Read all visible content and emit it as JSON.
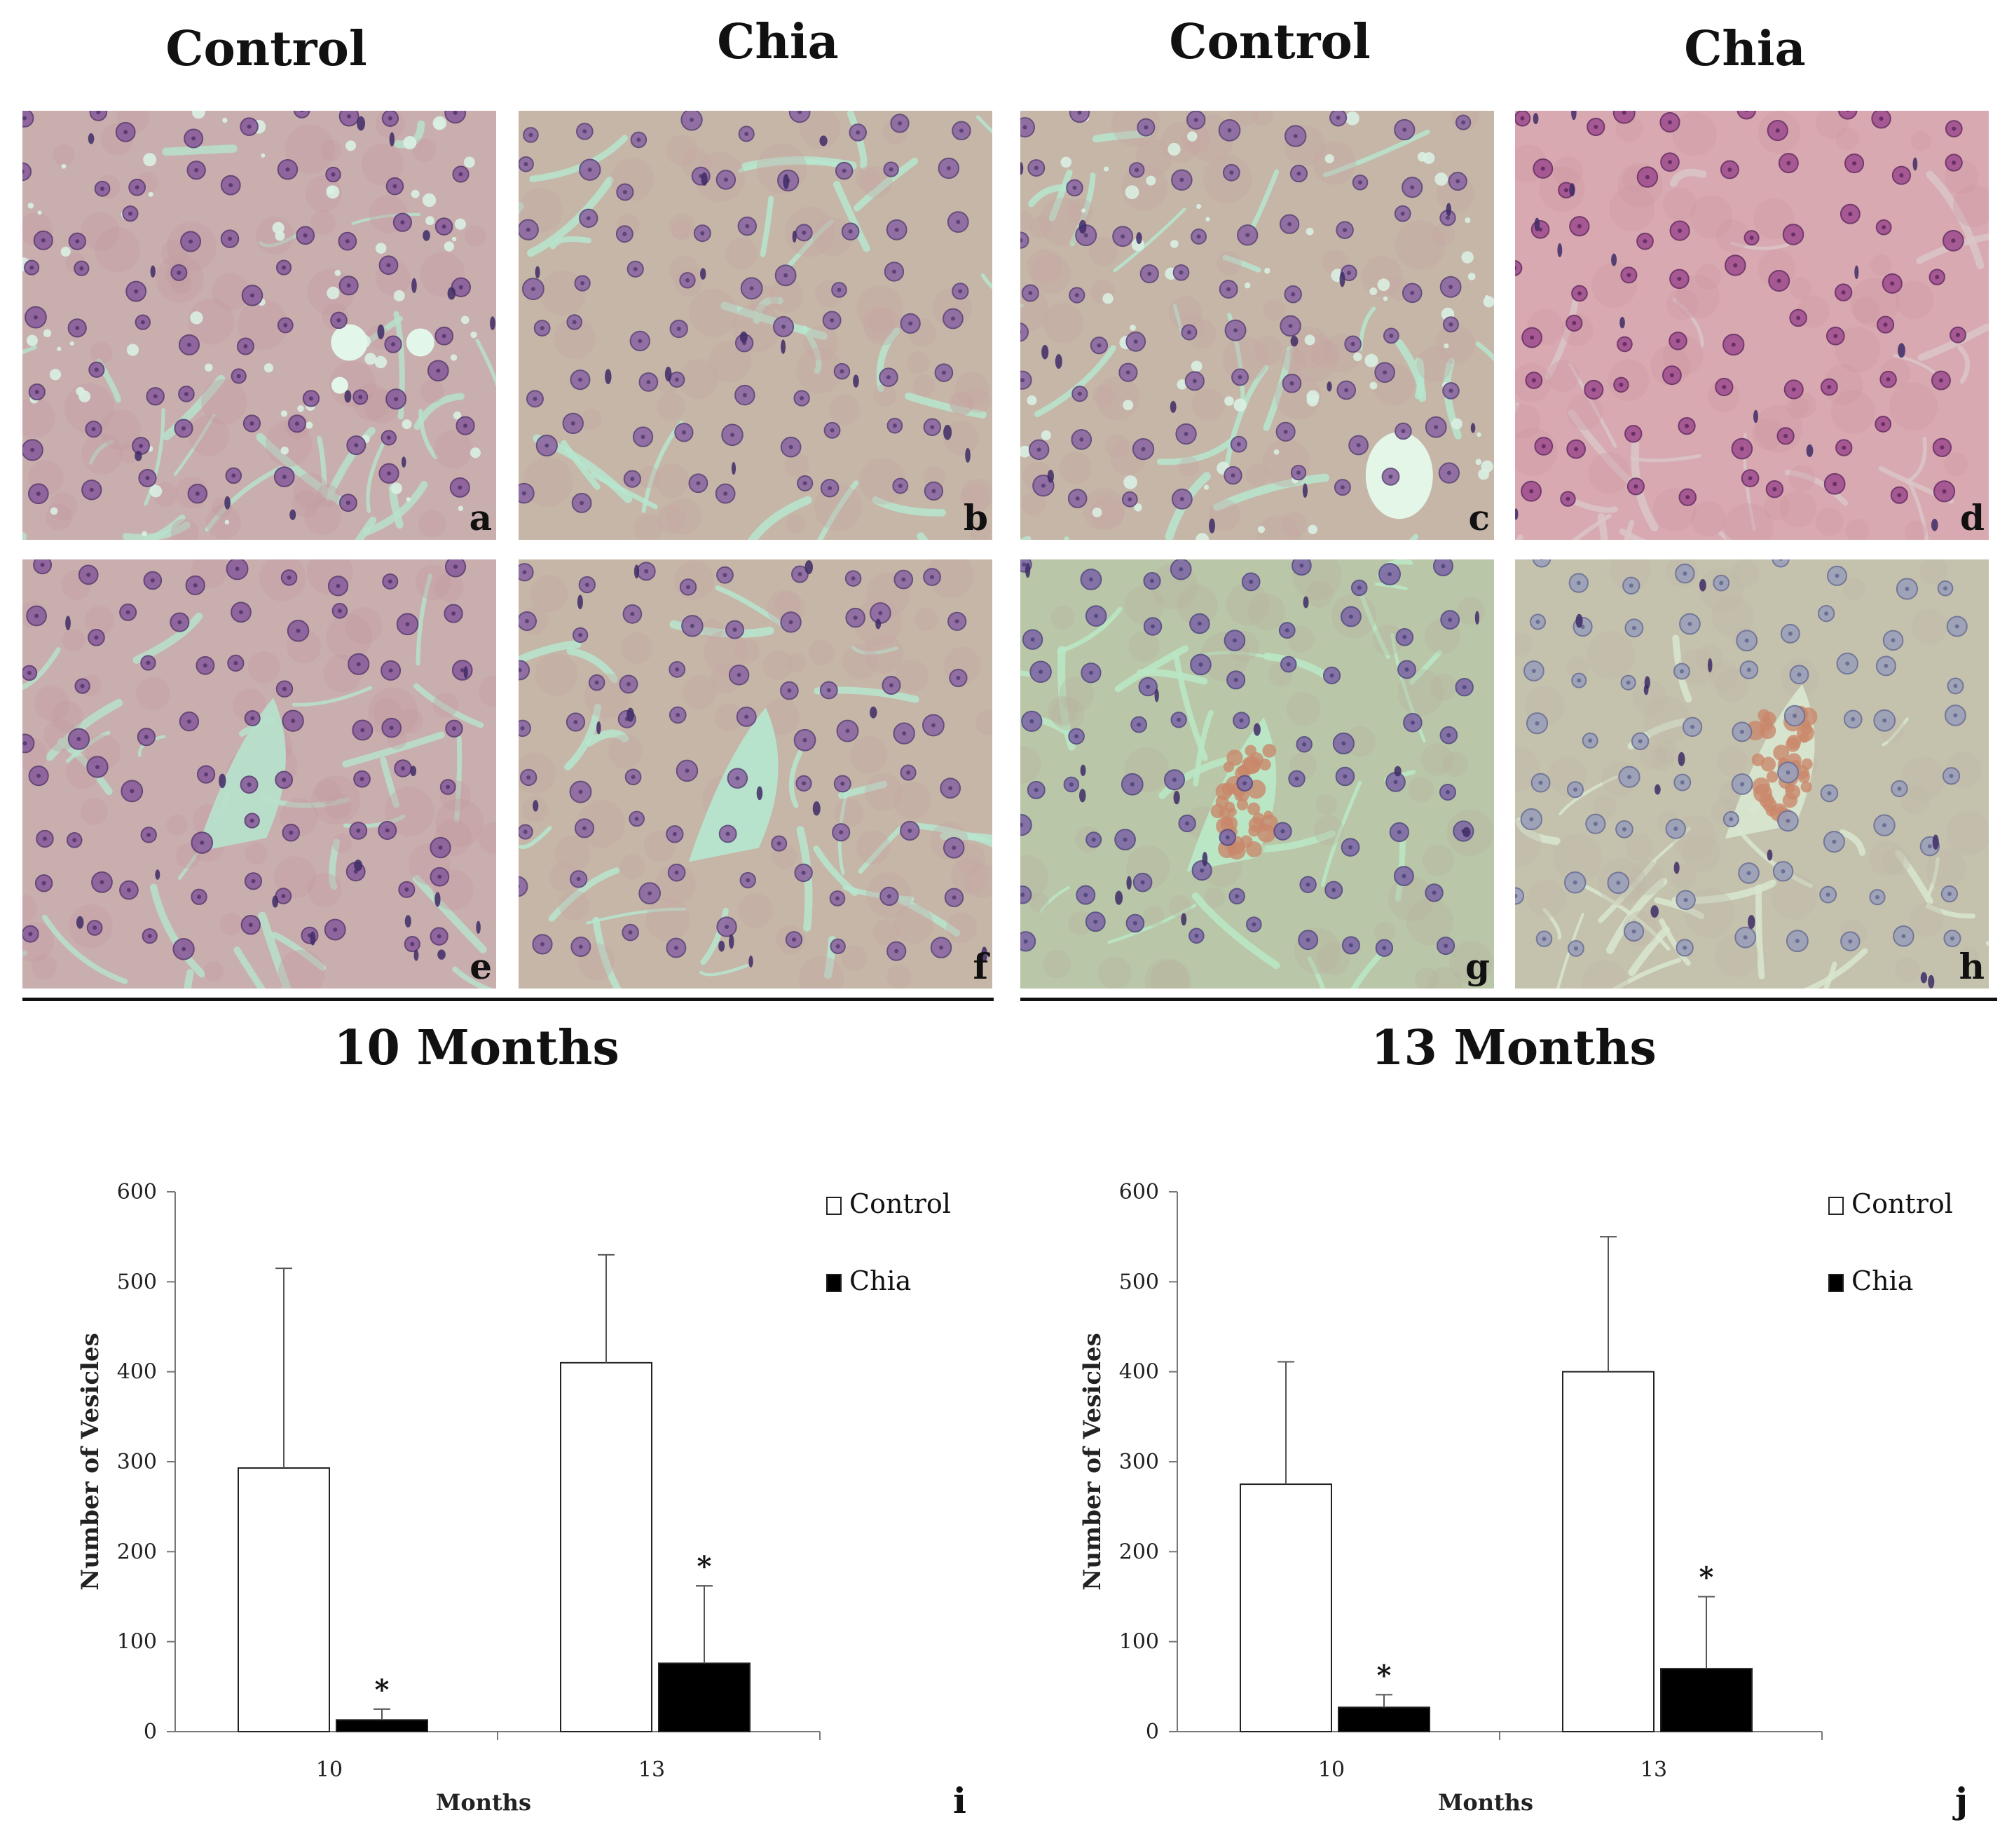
{
  "header": {
    "col1": "Control",
    "col2": "Chia",
    "col3": "Control",
    "col4": "Chia"
  },
  "panels": {
    "a": "a",
    "b": "b",
    "c": "c",
    "d": "d",
    "e": "e",
    "f": "f",
    "g": "g",
    "h": "h"
  },
  "periods": {
    "left": "10 Months",
    "right": "13 Months"
  },
  "chart_data": [
    {
      "type": "bar",
      "panel_letter": "i",
      "categories": [
        "10",
        "13"
      ],
      "series": [
        {
          "name": "Control",
          "values": [
            293,
            410
          ],
          "errors": [
            222,
            120
          ],
          "color": "#ffffff"
        },
        {
          "name": "Chia",
          "values": [
            13,
            76
          ],
          "errors": [
            12,
            86
          ],
          "color": "#000000"
        }
      ],
      "significance": [
        "*",
        "*"
      ],
      "xlabel": "Months",
      "ylabel": "Number of Vesicles",
      "ylim": [
        0,
        600
      ],
      "yticks": [
        "0",
        "100",
        "200",
        "300",
        "400",
        "500",
        "600"
      ],
      "grid": false,
      "legend": "top-right"
    },
    {
      "type": "bar",
      "panel_letter": "j",
      "categories": [
        "10",
        "13"
      ],
      "series": [
        {
          "name": "Control",
          "values": [
            275,
            400
          ],
          "errors": [
            136,
            150
          ],
          "color": "#ffffff"
        },
        {
          "name": "Chia",
          "values": [
            27,
            70
          ],
          "errors": [
            14,
            80
          ],
          "color": "#000000"
        }
      ],
      "significance": [
        "*",
        "*"
      ],
      "xlabel": "Months",
      "ylabel": "Number of Vesicles",
      "ylim": [
        0,
        600
      ],
      "yticks": [
        "0",
        "100",
        "200",
        "300",
        "400",
        "500",
        "600"
      ],
      "grid": false,
      "legend": "top-right"
    }
  ]
}
